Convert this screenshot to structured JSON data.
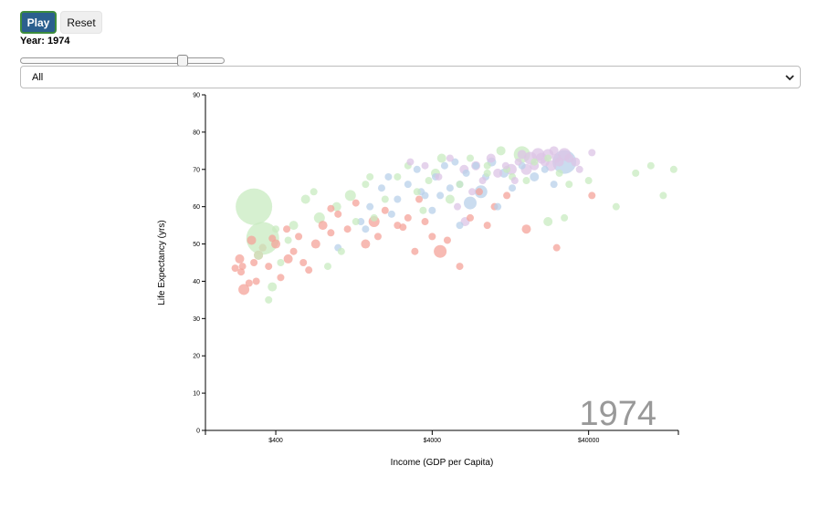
{
  "controls": {
    "play_label": "Play",
    "reset_label": "Reset",
    "year_label": "Year: 1974",
    "slider_value": 0.81,
    "filter_selected": "All"
  },
  "colors": {
    "play_bg": "#2b5f8e",
    "region_a": "#f4a39a",
    "region_b": "#b8d0ea",
    "region_c": "#c8ebc0",
    "region_d": "#dcc4e6"
  },
  "chart_data": {
    "type": "scatter",
    "title": "",
    "xlabel": "Income (GDP per Capita)",
    "ylabel": "Life Expectancy (yrs)",
    "x_scale": "log",
    "xlim": [
      142,
      150000
    ],
    "ylim": [
      0,
      90
    ],
    "x_ticks": [
      {
        "value": 400,
        "label": "$400"
      },
      {
        "value": 4000,
        "label": "$4000"
      },
      {
        "value": 40000,
        "label": "$40000"
      }
    ],
    "y_ticks": [
      0,
      10,
      20,
      30,
      40,
      50,
      60,
      70,
      80,
      90
    ],
    "year_watermark": "1974",
    "series": [
      {
        "color": "#f4a39a",
        "points": [
          [
            220,
            43.5,
            4
          ],
          [
            235,
            46,
            5
          ],
          [
            250,
            37.8,
            6
          ],
          [
            245,
            44,
            4
          ],
          [
            280,
            51,
            5
          ],
          [
            290,
            45,
            4
          ],
          [
            300,
            40,
            4
          ],
          [
            310,
            47,
            5
          ],
          [
            330,
            49,
            4
          ],
          [
            360,
            44,
            4
          ],
          [
            400,
            50,
            5
          ],
          [
            430,
            41,
            4
          ],
          [
            480,
            46,
            5
          ],
          [
            520,
            48,
            4
          ],
          [
            560,
            52,
            4
          ],
          [
            600,
            45,
            4
          ],
          [
            650,
            43,
            4
          ],
          [
            720,
            50,
            5
          ],
          [
            800,
            55,
            5
          ],
          [
            900,
            53,
            4
          ],
          [
            1000,
            58,
            4
          ],
          [
            1150,
            54,
            4
          ],
          [
            1300,
            61,
            4
          ],
          [
            1500,
            50,
            5
          ],
          [
            1700,
            56,
            6
          ],
          [
            2000,
            59,
            4
          ],
          [
            2400,
            55,
            4
          ],
          [
            2800,
            57,
            4
          ],
          [
            3300,
            62,
            4
          ],
          [
            3600,
            56,
            4
          ],
          [
            4000,
            52,
            4
          ],
          [
            4500,
            48,
            7
          ],
          [
            5000,
            51,
            4
          ],
          [
            6000,
            44,
            4
          ],
          [
            7000,
            57,
            4
          ],
          [
            9000,
            55,
            4
          ],
          [
            10000,
            60,
            4
          ],
          [
            12000,
            63,
            4
          ],
          [
            16000,
            54,
            5
          ],
          [
            25000,
            49,
            4
          ],
          [
            42000,
            63,
            4
          ],
          [
            240,
            42.5,
            4
          ],
          [
            270,
            39.5,
            4
          ],
          [
            380,
            51.5,
            4
          ],
          [
            470,
            54,
            4
          ],
          [
            900,
            59.5,
            4
          ],
          [
            1800,
            52,
            4
          ],
          [
            2600,
            54.5,
            4
          ],
          [
            3100,
            48,
            4
          ],
          [
            8000,
            64,
            4
          ]
        ]
      },
      {
        "color": "#b8d0ea",
        "points": [
          [
            1000,
            49,
            4
          ],
          [
            1400,
            56,
            4
          ],
          [
            1600,
            60,
            4
          ],
          [
            1900,
            65,
            4
          ],
          [
            2100,
            68,
            4
          ],
          [
            2400,
            62,
            4
          ],
          [
            2800,
            66,
            4
          ],
          [
            3200,
            70,
            4
          ],
          [
            3600,
            63,
            4
          ],
          [
            4000,
            59,
            4
          ],
          [
            4200,
            68,
            4
          ],
          [
            4800,
            71,
            4
          ],
          [
            5200,
            65,
            4
          ],
          [
            5600,
            72,
            4
          ],
          [
            6000,
            66,
            4
          ],
          [
            6600,
            69,
            4
          ],
          [
            7000,
            61,
            7
          ],
          [
            7600,
            71,
            4
          ],
          [
            8200,
            64,
            7
          ],
          [
            8800,
            68,
            4
          ],
          [
            9600,
            72,
            5
          ],
          [
            10500,
            60,
            4
          ],
          [
            11500,
            69,
            5
          ],
          [
            13000,
            65,
            4
          ],
          [
            15000,
            71,
            4
          ],
          [
            18000,
            68,
            5
          ],
          [
            21000,
            70,
            4
          ],
          [
            24000,
            66,
            4
          ],
          [
            28000,
            72,
            13
          ],
          [
            1500,
            54,
            4
          ],
          [
            2200,
            58,
            4
          ],
          [
            3400,
            64,
            4
          ],
          [
            4500,
            63,
            4
          ],
          [
            6000,
            55,
            4
          ]
        ]
      },
      {
        "color": "#c8ebc0",
        "points": [
          [
            290,
            60,
            20
          ],
          [
            330,
            51.5,
            18
          ],
          [
            380,
            38.5,
            5
          ],
          [
            360,
            35,
            4
          ],
          [
            310,
            47,
            5
          ],
          [
            400,
            54,
            4
          ],
          [
            430,
            45,
            4
          ],
          [
            520,
            55,
            5
          ],
          [
            620,
            62,
            5
          ],
          [
            700,
            64,
            4
          ],
          [
            760,
            57,
            6
          ],
          [
            860,
            44,
            4
          ],
          [
            980,
            60,
            5
          ],
          [
            1050,
            48,
            4
          ],
          [
            1200,
            63,
            6
          ],
          [
            1300,
            56,
            4
          ],
          [
            1500,
            66,
            4
          ],
          [
            1700,
            57,
            4
          ],
          [
            2000,
            62,
            4
          ],
          [
            2400,
            68,
            4
          ],
          [
            2800,
            71,
            4
          ],
          [
            3200,
            64,
            4
          ],
          [
            3500,
            59,
            4
          ],
          [
            3800,
            67,
            4
          ],
          [
            4200,
            69,
            5
          ],
          [
            4600,
            73,
            5
          ],
          [
            5200,
            62,
            5
          ],
          [
            6000,
            66,
            4
          ],
          [
            7000,
            73,
            4
          ],
          [
            9000,
            71,
            4
          ],
          [
            11000,
            75,
            5
          ],
          [
            13000,
            68,
            4
          ],
          [
            15000,
            74,
            9
          ],
          [
            18000,
            72,
            4
          ],
          [
            22000,
            73,
            4
          ],
          [
            26000,
            69,
            4
          ],
          [
            30000,
            66,
            4
          ],
          [
            40000,
            67,
            4
          ],
          [
            60000,
            60,
            4
          ],
          [
            80000,
            69,
            4
          ],
          [
            100000,
            71,
            4
          ],
          [
            120000,
            63,
            4
          ],
          [
            140000,
            70,
            4
          ],
          [
            330,
            49,
            4
          ],
          [
            480,
            51,
            4
          ],
          [
            1600,
            68,
            4
          ],
          [
            9000,
            69,
            4
          ],
          [
            12000,
            70,
            4
          ],
          [
            16000,
            67,
            4
          ],
          [
            22000,
            56,
            5
          ],
          [
            28000,
            57,
            4
          ]
        ]
      },
      {
        "color": "#dcc4e6",
        "points": [
          [
            2900,
            72,
            4
          ],
          [
            3600,
            71,
            4
          ],
          [
            4400,
            68,
            4
          ],
          [
            5200,
            73,
            4
          ],
          [
            6400,
            70,
            5
          ],
          [
            7600,
            71,
            5
          ],
          [
            8400,
            67,
            4
          ],
          [
            9500,
            73,
            5
          ],
          [
            10500,
            69,
            5
          ],
          [
            11800,
            71,
            4
          ],
          [
            12800,
            70,
            6
          ],
          [
            13500,
            67,
            4
          ],
          [
            14200,
            72,
            4
          ],
          [
            15000,
            74,
            5
          ],
          [
            16000,
            70,
            6
          ],
          [
            17000,
            73,
            7
          ],
          [
            18000,
            71,
            5
          ],
          [
            19000,
            74,
            7
          ],
          [
            20000,
            73,
            6
          ],
          [
            21000,
            72,
            5
          ],
          [
            22000,
            74,
            6
          ],
          [
            23000,
            71,
            6
          ],
          [
            24000,
            75,
            5
          ],
          [
            25000,
            73,
            5
          ],
          [
            26000,
            72,
            5
          ],
          [
            28000,
            74,
            7
          ],
          [
            30000,
            73,
            5
          ],
          [
            33000,
            72,
            5
          ],
          [
            35000,
            70,
            4
          ],
          [
            42000,
            74.5,
            4
          ],
          [
            6500,
            56,
            5
          ],
          [
            5800,
            60,
            4
          ],
          [
            7200,
            64,
            4
          ]
        ]
      }
    ]
  }
}
